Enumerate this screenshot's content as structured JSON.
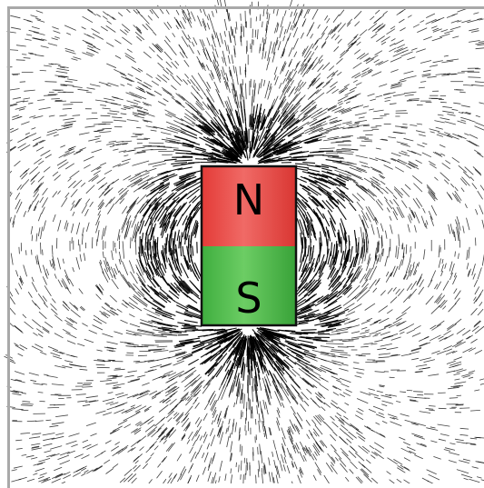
{
  "diagram": {
    "magnet": {
      "north_label": "N",
      "south_label": "S",
      "north_color": "#e8443f",
      "south_color": "#4bb54a",
      "outline_color": "#111111"
    },
    "field_lines": {
      "color": "#000000"
    },
    "frame_color": "#a9a9a9",
    "background": "#ffffff"
  }
}
